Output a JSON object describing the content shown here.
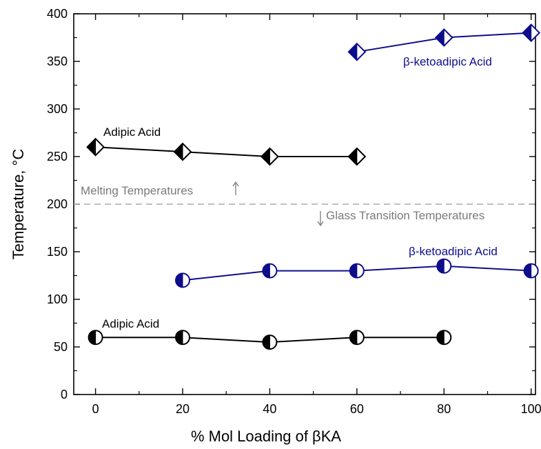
{
  "chart_data": {
    "type": "line",
    "xlabel": "% Mol Loading of βKA",
    "ylabel": "Temperature, °C",
    "xlim": [
      -5,
      101
    ],
    "ylim": [
      0,
      400
    ],
    "xticks": [
      0,
      20,
      40,
      60,
      80,
      100
    ],
    "yticks": [
      0,
      50,
      100,
      150,
      200,
      250,
      300,
      350,
      400
    ],
    "grid": false,
    "divider": {
      "y": 200,
      "style": "dashed",
      "color": "#aaaaaa"
    },
    "region_labels": {
      "melting": "Melting Temperatures",
      "glass": "Glass Transition Temperatures"
    },
    "series": [
      {
        "label": "β-ketoadipic Acid",
        "marker": "diamond",
        "color": "#0d0d8c",
        "x": [
          60,
          80,
          100
        ],
        "y": [
          360,
          375,
          380
        ]
      },
      {
        "label": "Adipic Acid",
        "marker": "diamond",
        "color": "#000000",
        "x": [
          0,
          20,
          40,
          60
        ],
        "y": [
          260,
          255,
          250,
          250
        ]
      },
      {
        "label": "β-ketoadipic Acid",
        "marker": "circle",
        "color": "#0d0d8c",
        "x": [
          20,
          40,
          60,
          80,
          100
        ],
        "y": [
          120,
          130,
          130,
          135,
          130
        ]
      },
      {
        "label": "Adipic Acid",
        "marker": "circle",
        "color": "#000000",
        "x": [
          0,
          20,
          40,
          60,
          80
        ],
        "y": [
          60,
          60,
          55,
          60,
          60
        ]
      }
    ]
  }
}
